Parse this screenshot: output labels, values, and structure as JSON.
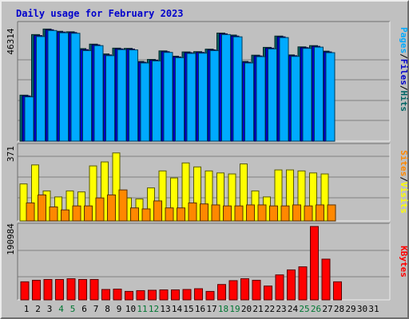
{
  "title": "Daily usage for February 2023",
  "colors": {
    "background": "#c0c0c0",
    "title": "#0000cc",
    "grid": "#808080",
    "hits": "#006666",
    "files": "#0000cc",
    "pages": "#00aaff",
    "visits": "#ffff00",
    "sites": "#ff8800",
    "kbytes": "#ff0000",
    "weekday_label": "#000000",
    "weekend_label": "#007733"
  },
  "chart_data": [
    {
      "type": "bar",
      "panel": "hits-files-pages",
      "y_max_label": "46314",
      "ylim": [
        0,
        46314
      ],
      "legend": [
        {
          "text": "Pages",
          "color": "#00aaff"
        },
        {
          "text": "/",
          "color": "#000000"
        },
        {
          "text": "Files",
          "color": "#0000cc"
        },
        {
          "text": "/",
          "color": "#000000"
        },
        {
          "text": "Hits",
          "color": "#006666"
        }
      ],
      "series": [
        {
          "name": "Hits",
          "values": [
            18300,
            42400,
            44600,
            43700,
            43500,
            36800,
            38600,
            34700,
            37000,
            36900,
            31700,
            32500,
            35900,
            33800,
            35500,
            35600,
            36600,
            43000,
            42200,
            31700,
            34200,
            37300,
            41800,
            34300,
            37500,
            38000,
            35800,
            0,
            0,
            0,
            0
          ]
        },
        {
          "name": "Files",
          "values": [
            18000,
            42000,
            44300,
            43400,
            43200,
            36400,
            38300,
            34300,
            36700,
            36600,
            31400,
            32200,
            35600,
            33500,
            35200,
            35300,
            36300,
            42700,
            41800,
            31400,
            33900,
            37000,
            41500,
            34000,
            37200,
            37700,
            35500,
            0,
            0,
            0,
            0
          ]
        },
        {
          "name": "Pages",
          "values": [
            17600,
            41600,
            44000,
            43100,
            42900,
            36000,
            38000,
            34000,
            36400,
            36300,
            31100,
            31900,
            35300,
            33200,
            34900,
            35000,
            36000,
            42400,
            41500,
            31100,
            33600,
            36700,
            41200,
            33700,
            36900,
            37400,
            35200,
            0,
            0,
            0,
            0
          ]
        }
      ]
    },
    {
      "type": "bar",
      "panel": "visits-sites",
      "y_max_label": "371",
      "ylim": [
        0,
        371
      ],
      "legend": [
        {
          "text": "Sites",
          "color": "#ff8800"
        },
        {
          "text": "/",
          "color": "#000000"
        },
        {
          "text": "Visits",
          "color": "#ffff00"
        }
      ],
      "series": [
        {
          "name": "Visits",
          "values": [
            185,
            280,
            150,
            120,
            150,
            145,
            275,
            295,
            340,
            115,
            110,
            165,
            250,
            215,
            290,
            270,
            250,
            240,
            235,
            285,
            150,
            120,
            255,
            255,
            250,
            240,
            235,
            0,
            0,
            0,
            0
          ]
        },
        {
          "name": "Sites",
          "values": [
            90,
            130,
            70,
            55,
            75,
            75,
            115,
            130,
            155,
            65,
            60,
            100,
            65,
            65,
            90,
            85,
            80,
            75,
            75,
            80,
            80,
            75,
            75,
            80,
            75,
            80,
            80,
            0,
            0,
            0,
            0
          ]
        }
      ]
    },
    {
      "type": "bar",
      "panel": "kbytes",
      "y_max_label": "190984",
      "ylim": [
        0,
        190984
      ],
      "legend": [
        {
          "text": "KBytes",
          "color": "#ff0000"
        }
      ],
      "series": [
        {
          "name": "KBytes",
          "values": [
            47000,
            51000,
            53000,
            53000,
            55000,
            53000,
            53000,
            27000,
            28000,
            22000,
            24000,
            25000,
            26000,
            26000,
            27000,
            29000,
            22000,
            40000,
            50000,
            55000,
            51000,
            36000,
            65000,
            78000,
            86000,
            190984,
            106000,
            47000,
            0,
            0,
            0
          ]
        }
      ]
    }
  ],
  "x_axis": {
    "labels": [
      "1",
      "2",
      "3",
      "4",
      "5",
      "6",
      "7",
      "8",
      "9",
      "10",
      "11",
      "12",
      "13",
      "14",
      "15",
      "16",
      "17",
      "18",
      "19",
      "20",
      "21",
      "22",
      "23",
      "24",
      "25",
      "26",
      "27",
      "28",
      "29",
      "30",
      "31"
    ],
    "weekend_days": [
      4,
      5,
      11,
      12,
      18,
      19,
      25,
      26
    ]
  }
}
